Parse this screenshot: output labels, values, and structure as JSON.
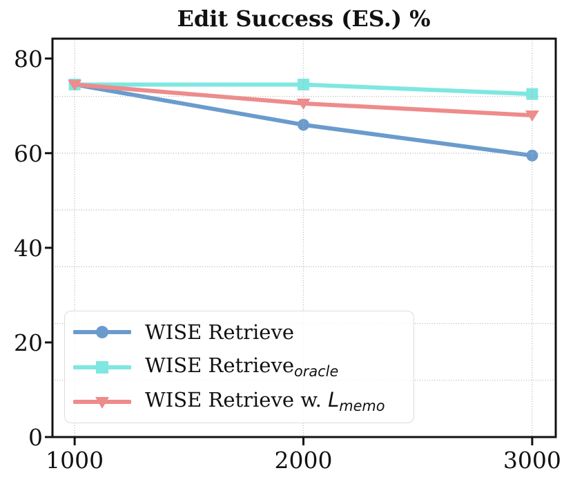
{
  "chart_data": {
    "type": "line",
    "title": "Edit Success (ES.) %",
    "x": [
      1000,
      2000,
      3000
    ],
    "xticks": [
      "1000",
      "2000",
      "3000"
    ],
    "yticks": [
      "0",
      "20",
      "40",
      "60",
      "80"
    ],
    "ytick_values": [
      0,
      20,
      40,
      60,
      80
    ],
    "xtick_values": [
      1000,
      2000,
      3000
    ],
    "xlim": [
      903,
      3103
    ],
    "ylim": [
      0,
      84.2
    ],
    "grid": {
      "on": true,
      "style": "dotted",
      "color": "#b3b3b3",
      "above_data": true,
      "h_values": [
        12,
        24,
        36,
        48,
        60,
        72
      ],
      "v_values": [
        1000,
        2000,
        3000
      ]
    },
    "axis_color": "#111111",
    "series": [
      {
        "name": "WISE Retrieve",
        "marker": "circle",
        "color": "#6a9bcc",
        "values": [
          74.5,
          66.0,
          59.5
        ]
      },
      {
        "name": "WISE Retrieve oracle",
        "marker": "square",
        "color": "#7ee7e1",
        "values": [
          74.5,
          74.5,
          72.5
        ]
      },
      {
        "name": "WISE Retrieve w. Lmemo",
        "marker": "triangle-down",
        "color": "#ee8b8b",
        "values": [
          74.5,
          70.5,
          68.0
        ]
      }
    ],
    "legend": {
      "position": "lower-left",
      "items": [
        {
          "parts": [
            {
              "t": "WISE Retrieve"
            }
          ]
        },
        {
          "parts": [
            {
              "t": "WISE Retrieve"
            },
            {
              "t": "oracle",
              "style": "sub-italic"
            }
          ]
        },
        {
          "parts": [
            {
              "t": "WISE Retrieve w. "
            },
            {
              "t": "L",
              "style": "italic"
            },
            {
              "t": "memo",
              "style": "sub-italic"
            }
          ]
        }
      ]
    }
  }
}
